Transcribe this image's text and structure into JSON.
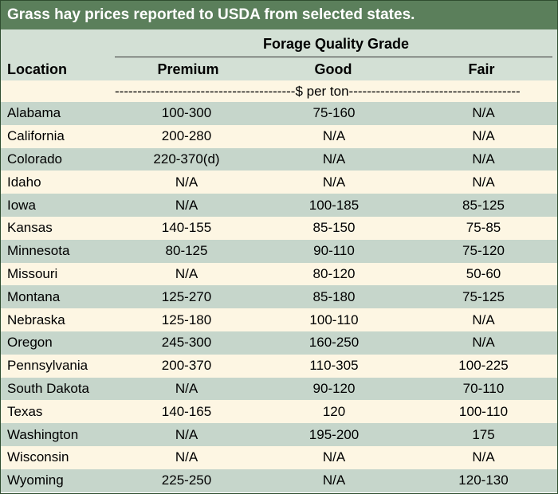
{
  "title": "Grass hay prices reported to USDA from selected states.",
  "group_header": "Forage Quality Grade",
  "columns": {
    "location": "Location",
    "premium": "Premium",
    "good": "Good",
    "fair": "Fair"
  },
  "unit_row": "----------------------------------------$ per ton--------------------------------------",
  "rows": [
    {
      "location": "Alabama",
      "premium": "100-300",
      "good": "75-160",
      "fair": "N/A"
    },
    {
      "location": "California",
      "premium": "200-280",
      "good": "N/A",
      "fair": "N/A"
    },
    {
      "location": "Colorado",
      "premium": "220-370(d)",
      "good": "N/A",
      "fair": "N/A"
    },
    {
      "location": "Idaho",
      "premium": "N/A",
      "good": "N/A",
      "fair": "N/A"
    },
    {
      "location": "Iowa",
      "premium": "N/A",
      "good": "100-185",
      "fair": "85-125"
    },
    {
      "location": "Kansas",
      "premium": "140-155",
      "good": "85-150",
      "fair": "75-85"
    },
    {
      "location": "Minnesota",
      "premium": "80-125",
      "good": "90-110",
      "fair": "75-120"
    },
    {
      "location": "Missouri",
      "premium": "N/A",
      "good": "80-120",
      "fair": "50-60"
    },
    {
      "location": "Montana",
      "premium": "125-270",
      "good": "85-180",
      "fair": "75-125"
    },
    {
      "location": "Nebraska",
      "premium": "125-180",
      "good": "100-110",
      "fair": "N/A"
    },
    {
      "location": "Oregon",
      "premium": "245-300",
      "good": "160-250",
      "fair": "N/A"
    },
    {
      "location": "Pennsylvania",
      "premium": "200-370",
      "good": "110-305",
      "fair": "100-225"
    },
    {
      "location": "South Dakota",
      "premium": "N/A",
      "good": "90-120",
      "fair": "70-110"
    },
    {
      "location": "Texas",
      "premium": "140-165",
      "good": "120",
      "fair": "100-110"
    },
    {
      "location": "Washington",
      "premium": "N/A",
      "good": "195-200",
      "fair": "175"
    },
    {
      "location": "Wisconsin",
      "premium": "N/A",
      "good": "N/A",
      "fair": "N/A"
    },
    {
      "location": "Wyoming",
      "premium": "225-250",
      "good": "N/A",
      "fair": "120-130"
    }
  ]
}
